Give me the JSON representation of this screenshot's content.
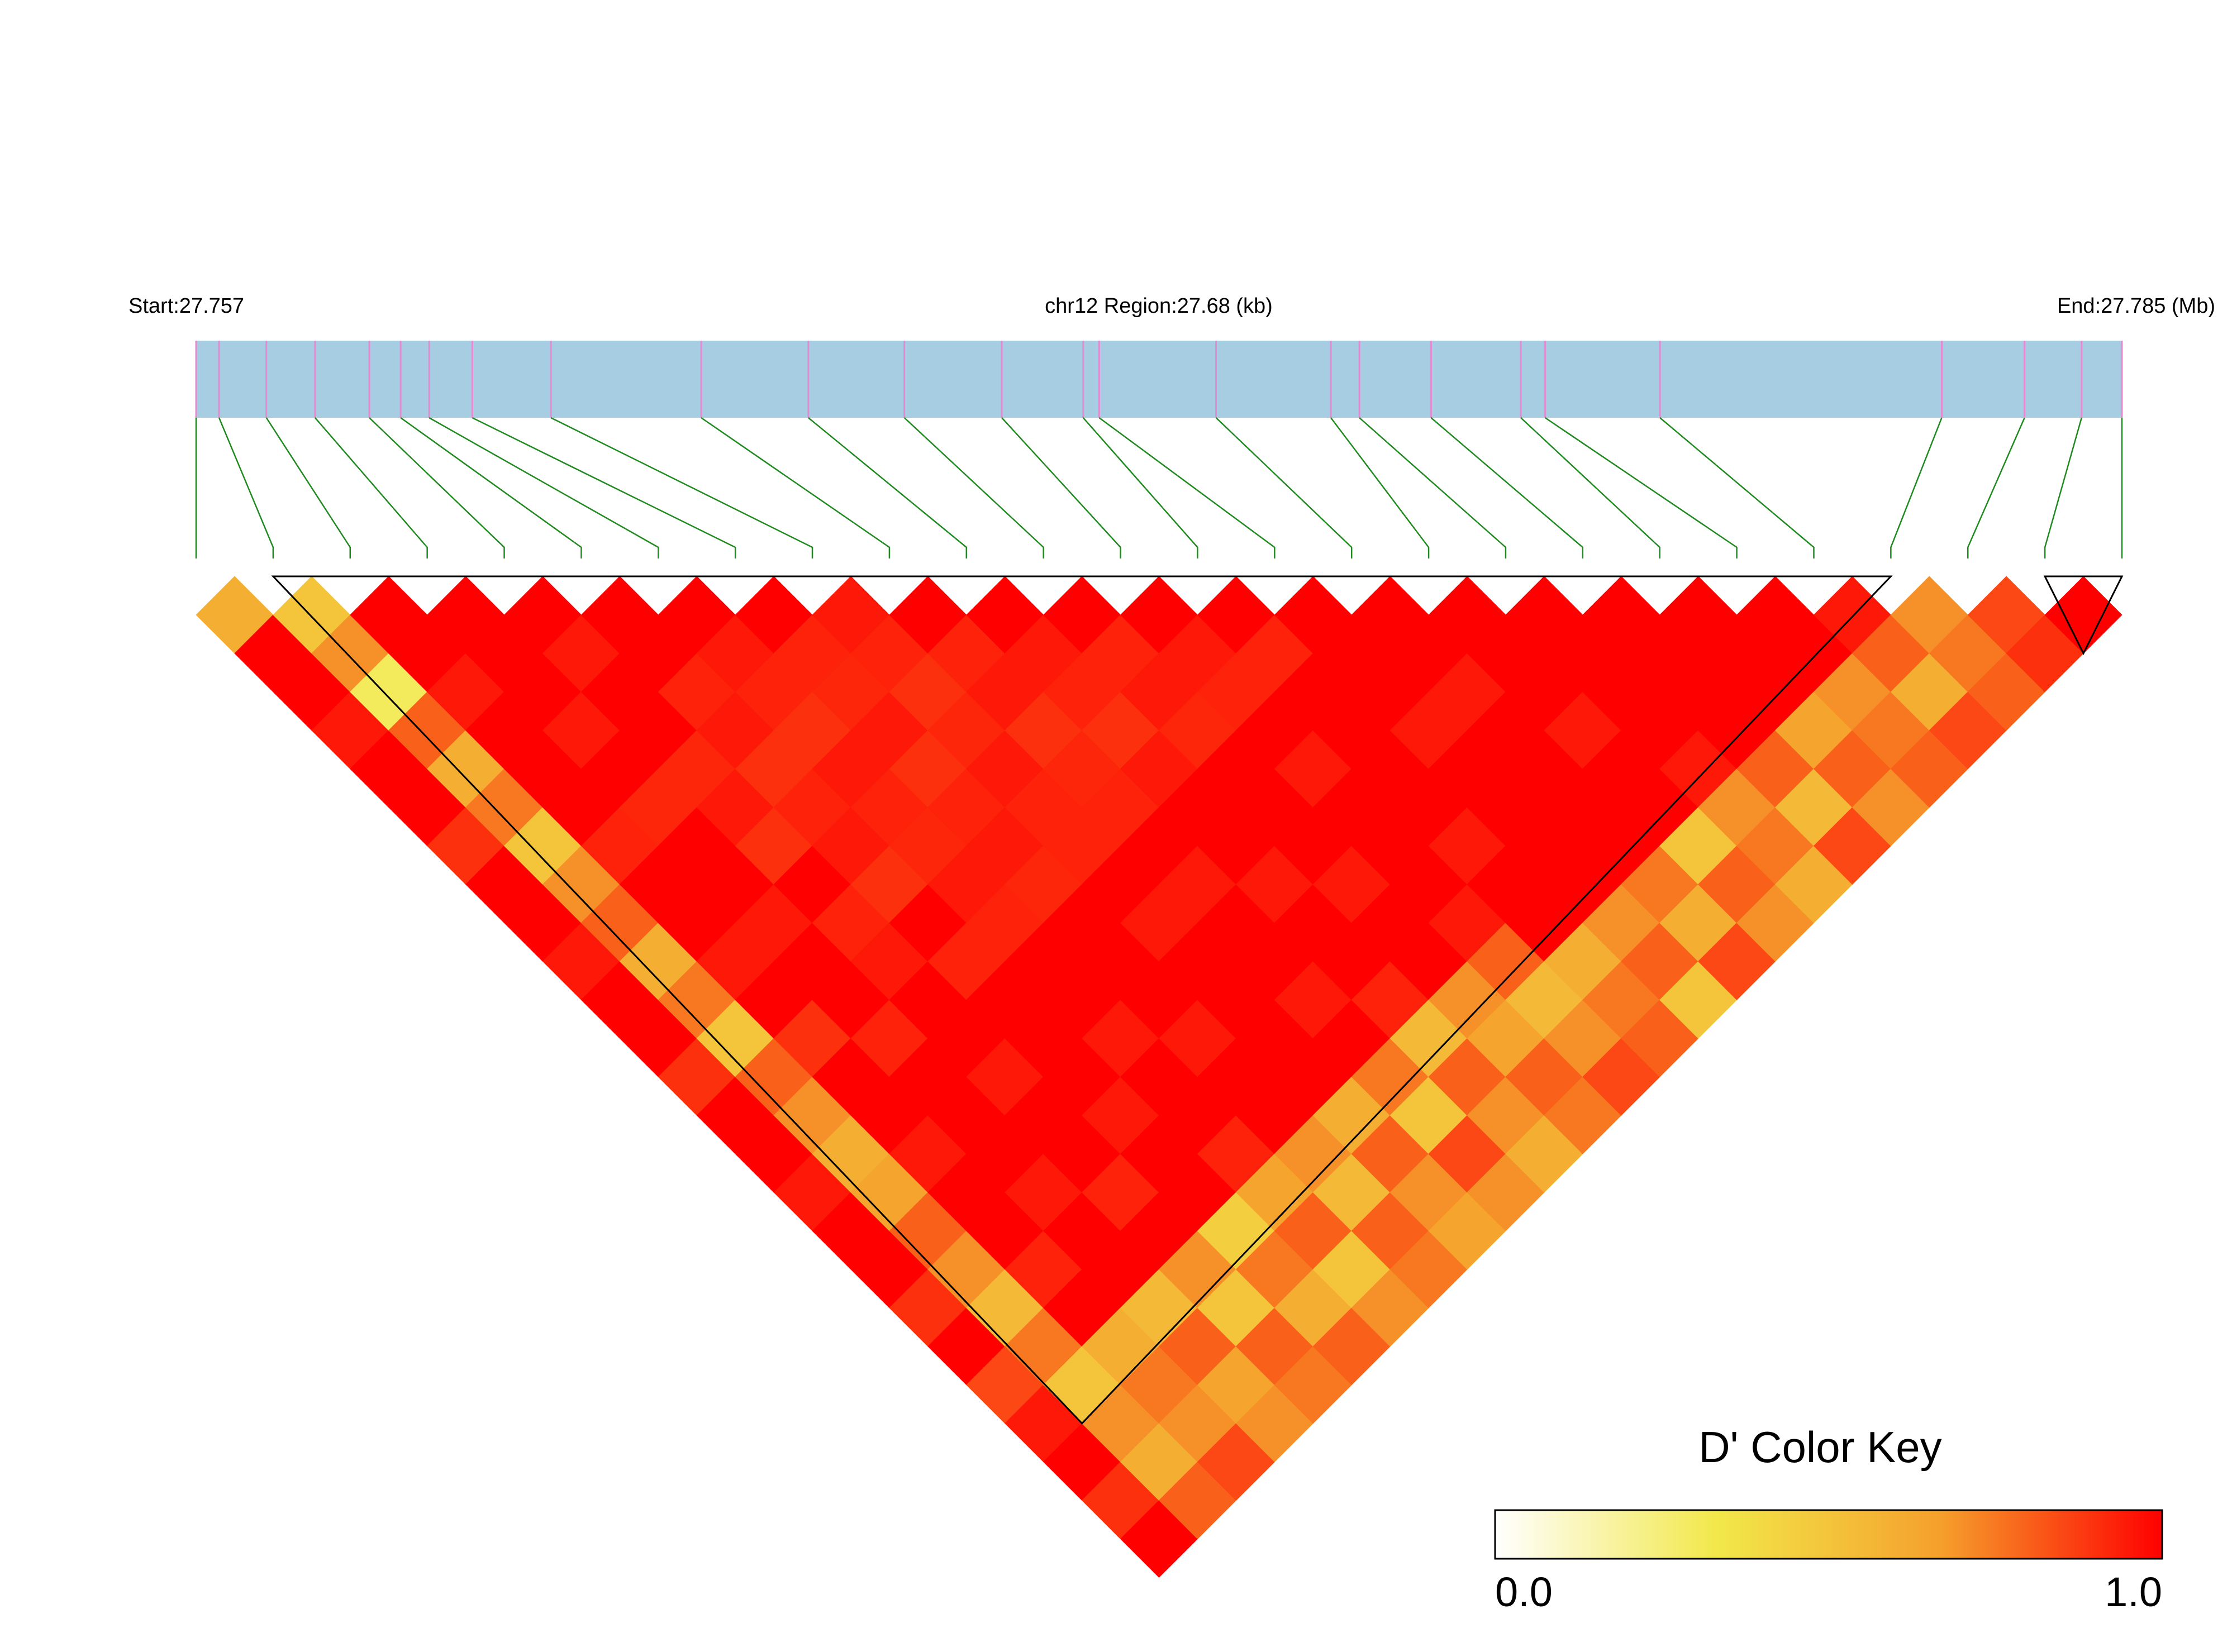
{
  "chart_data": {
    "type": "ld_heatmap",
    "start_label": "Start:27.757",
    "region_label": "chr12 Region:27.68 (kb)",
    "end_label": "End:27.785 (Mb)",
    "xlim": [
      27.757,
      27.78468
    ],
    "snp_positions": [
      27.757,
      27.75733,
      27.75801,
      27.75871,
      27.75949,
      27.75994,
      27.76035,
      27.76097,
      27.7621,
      27.76426,
      27.7658,
      27.76718,
      27.76858,
      27.76975,
      27.76998,
      27.77166,
      27.77331,
      27.77372,
      27.77475,
      27.77604,
      27.77639,
      27.77804,
      27.78209,
      27.78328,
      27.7841,
      27.78468
    ],
    "ld_matrix": [
      [
        0.6,
        1,
        1,
        0.95,
        1,
        1,
        0.9,
        1,
        1,
        0.95,
        1,
        1,
        0.9,
        1,
        1,
        0.95,
        1,
        1,
        0.9,
        1,
        0.85,
        0.95,
        1,
        0.9,
        1
      ],
      [
        0.5,
        0.7,
        0.3,
        0.8,
        0.6,
        0.75,
        0.5,
        0.7,
        0.8,
        0.6,
        0.75,
        0.5,
        0.8,
        0.7,
        0.6,
        0.65,
        0.8,
        0.7,
        0.55,
        0.75,
        0.5,
        0.7,
        0.6,
        0.8
      ],
      [
        1,
        1,
        0.95,
        1,
        1,
        1,
        0.93,
        1,
        1,
        0.95,
        1,
        0.9,
        1,
        1,
        0.95,
        1,
        1,
        0.93,
        1,
        0.6,
        0.75,
        0.7,
        0.85
      ],
      [
        1,
        1,
        1,
        0.95,
        1,
        0.92,
        1,
        1,
        0.95,
        1,
        1,
        0.93,
        1,
        1,
        1,
        0.95,
        1,
        1,
        0.55,
        0.8,
        0.65,
        0.7
      ],
      [
        1,
        0.95,
        1,
        1,
        0.92,
        0.95,
        0.9,
        1,
        0.93,
        0.95,
        1,
        1,
        0.95,
        1,
        1,
        0.93,
        1,
        0.7,
        0.5,
        0.8,
        0.75
      ],
      [
        1,
        1,
        0.93,
        0.95,
        0.9,
        0.93,
        0.95,
        0.9,
        1,
        0.93,
        1,
        1,
        1,
        0.95,
        1,
        1,
        0.45,
        0.75,
        0.6,
        0.8
      ],
      [
        1,
        0.95,
        0.93,
        0.9,
        0.95,
        0.93,
        0.92,
        0.95,
        0.93,
        1,
        1,
        0.95,
        1,
        1,
        0.93,
        0.65,
        0.8,
        0.5,
        0.7
      ],
      [
        1,
        0.93,
        0.92,
        0.95,
        0.9,
        0.93,
        0.95,
        0.92,
        1,
        1,
        1,
        0.95,
        1,
        1,
        0.7,
        0.55,
        0.8,
        0.75
      ],
      [
        0.95,
        0.93,
        0.9,
        0.92,
        0.95,
        0.93,
        0.93,
        1,
        0.95,
        1,
        1,
        1,
        1,
        0.6,
        0.8,
        0.7,
        0.65
      ],
      [
        1,
        0.93,
        0.95,
        0.9,
        0.92,
        0.93,
        1,
        0.95,
        1,
        1,
        0.95,
        1,
        0.75,
        0.5,
        0.85,
        0.7
      ],
      [
        1,
        0.95,
        0.93,
        0.9,
        0.95,
        1,
        1,
        0.95,
        1,
        1,
        0.93,
        0.55,
        0.8,
        0.7,
        0.6
      ],
      [
        1,
        0.93,
        0.95,
        0.92,
        1,
        1,
        1,
        0.95,
        1,
        1,
        0.7,
        0.65,
        0.8,
        0.75
      ],
      [
        1,
        0.95,
        0.93,
        1,
        0.95,
        1,
        1,
        1,
        0.95,
        0.8,
        0.55,
        0.7,
        0.85
      ],
      [
        1,
        0.93,
        1,
        1,
        1,
        1,
        0.95,
        1,
        1,
        0.6,
        0.75,
        0.8
      ],
      [
        1,
        1,
        1,
        0.95,
        1,
        1,
        1,
        1,
        0.7,
        0.8,
        0.5
      ],
      [
        1,
        1,
        0.95,
        1,
        1,
        1,
        1,
        0.75,
        0.6,
        0.85
      ],
      [
        1,
        1,
        1,
        0.95,
        1,
        1,
        0.5,
        0.8,
        0.7
      ],
      [
        1,
        1,
        1,
        1,
        0.95,
        0.7,
        0.75,
        0.6
      ],
      [
        1,
        1,
        1,
        1,
        0.8,
        0.55,
        0.85
      ],
      [
        1,
        1,
        1,
        0.65,
        0.8,
        0.7
      ],
      [
        1,
        1,
        0.7,
        0.75,
        0.8
      ],
      [
        0.95,
        0.8,
        0.6,
        0.85
      ],
      [
        0.7,
        0.75,
        0.8
      ],
      [
        0.85,
        0.9
      ],
      [
        1
      ]
    ],
    "blocks": [
      [
        1,
        22
      ],
      [
        24,
        25
      ]
    ],
    "track_color": "#a7cde2",
    "snp_line_color": "#e58ad0",
    "link_color": "#1f8a1f",
    "colors": [
      "#ffffff",
      "#f2e84a",
      "#f5a02c",
      "#ff0000"
    ],
    "key_title": "D' Color Key",
    "key_range": [
      0,
      1
    ],
    "key_ticks": [
      {
        "value": 0,
        "label": "0.0"
      },
      {
        "value": 1,
        "label": "1.0"
      }
    ]
  }
}
